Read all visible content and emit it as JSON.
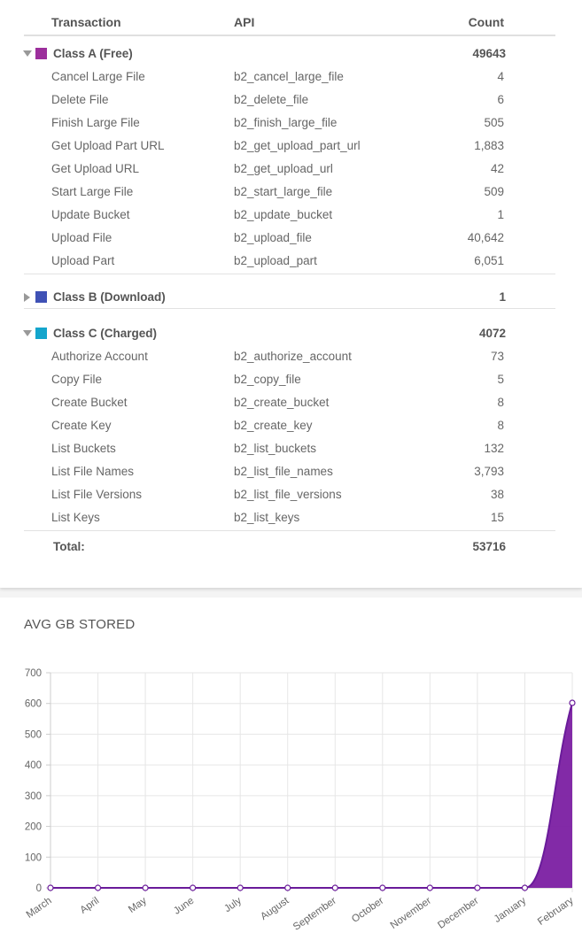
{
  "table": {
    "headers": {
      "transaction": "Transaction",
      "api": "API",
      "count": "Count"
    },
    "classes": [
      {
        "name": "Class A (Free)",
        "total": "49643",
        "color": "#9c2f9c",
        "expanded": true,
        "rows": [
          {
            "transaction": "Cancel Large File",
            "api": "b2_cancel_large_file",
            "count": "4"
          },
          {
            "transaction": "Delete File",
            "api": "b2_delete_file",
            "count": "6"
          },
          {
            "transaction": "Finish Large File",
            "api": "b2_finish_large_file",
            "count": "505"
          },
          {
            "transaction": "Get Upload Part URL",
            "api": "b2_get_upload_part_url",
            "count": "1,883"
          },
          {
            "transaction": "Get Upload URL",
            "api": "b2_get_upload_url",
            "count": "42"
          },
          {
            "transaction": "Start Large File",
            "api": "b2_start_large_file",
            "count": "509"
          },
          {
            "transaction": "Update Bucket",
            "api": "b2_update_bucket",
            "count": "1"
          },
          {
            "transaction": "Upload File",
            "api": "b2_upload_file",
            "count": "40,642"
          },
          {
            "transaction": "Upload Part",
            "api": "b2_upload_part",
            "count": "6,051"
          }
        ]
      },
      {
        "name": "Class B (Download)",
        "total": "1",
        "color": "#3f51b5",
        "expanded": false,
        "rows": []
      },
      {
        "name": "Class C (Charged)",
        "total": "4072",
        "color": "#14a5cc",
        "expanded": true,
        "rows": [
          {
            "transaction": "Authorize Account",
            "api": "b2_authorize_account",
            "count": "73"
          },
          {
            "transaction": "Copy File",
            "api": "b2_copy_file",
            "count": "5"
          },
          {
            "transaction": "Create Bucket",
            "api": "b2_create_bucket",
            "count": "8"
          },
          {
            "transaction": "Create Key",
            "api": "b2_create_key",
            "count": "8"
          },
          {
            "transaction": "List Buckets",
            "api": "b2_list_buckets",
            "count": "132"
          },
          {
            "transaction": "List File Names",
            "api": "b2_list_file_names",
            "count": "3,793"
          },
          {
            "transaction": "List File Versions",
            "api": "b2_list_file_versions",
            "count": "38"
          },
          {
            "transaction": "List Keys",
            "api": "b2_list_keys",
            "count": "15"
          }
        ]
      }
    ],
    "total_label": "Total:",
    "total_value": "53716"
  },
  "chart_data": {
    "type": "area",
    "title": "AVG GB STORED",
    "categories": [
      "March",
      "April",
      "May",
      "June",
      "July",
      "August",
      "September",
      "October",
      "November",
      "December",
      "January",
      "February"
    ],
    "series": [
      {
        "values": [
          0,
          0,
          0,
          0,
          0,
          0,
          0,
          0,
          0,
          0,
          0,
          602
        ],
        "color": "#7b1fa2"
      }
    ],
    "ylim": [
      0,
      700
    ],
    "yticks": [
      0,
      100,
      200,
      300,
      400,
      500,
      600,
      700
    ],
    "grid": true
  }
}
